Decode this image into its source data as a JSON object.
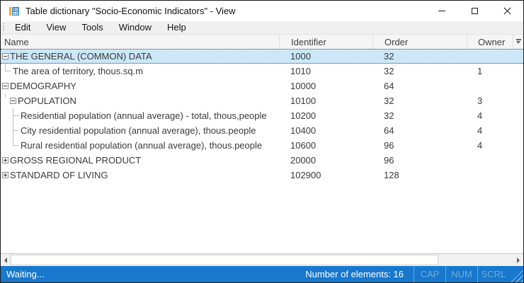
{
  "window": {
    "title": "Table dictionary \"Socio-Economic Indicators\" - View"
  },
  "menubar": {
    "items": [
      {
        "label": "Edit"
      },
      {
        "label": "View"
      },
      {
        "label": "Tools"
      },
      {
        "label": "Window"
      },
      {
        "label": "Help"
      }
    ]
  },
  "table": {
    "columns": [
      {
        "label": "Name"
      },
      {
        "label": "Identifier"
      },
      {
        "label": "Order"
      },
      {
        "label": "Owner"
      }
    ],
    "rows": [
      {
        "name": "THE GENERAL (COMMON) DATA",
        "identifier": "1000",
        "order": "32",
        "owner": "",
        "level": 0,
        "node": "minus",
        "connector": "none",
        "selected": true
      },
      {
        "name": "The area of territory, thous.sq.m",
        "identifier": "1010",
        "order": "32",
        "owner": "1",
        "level": 1,
        "node": "leaf",
        "connector": "last",
        "selected": false
      },
      {
        "name": "DEMOGRAPHY",
        "identifier": "10000",
        "order": "64",
        "owner": "",
        "level": 0,
        "node": "minus",
        "connector": "none",
        "selected": false
      },
      {
        "name": "POPULATION",
        "identifier": "10100",
        "order": "32",
        "owner": "3",
        "level": 1,
        "node": "minus",
        "connector": "drop",
        "selected": false
      },
      {
        "name": "Residential population (annual average) - total, thous,people",
        "identifier": "10200",
        "order": "32",
        "owner": "4",
        "level": 2,
        "node": "leaf",
        "connector": "mid",
        "selected": false
      },
      {
        "name": "City residential population (annual average), thous.people",
        "identifier": "10400",
        "order": "64",
        "owner": "4",
        "level": 2,
        "node": "leaf",
        "connector": "mid",
        "selected": false
      },
      {
        "name": "Rural residential population (annual average), thous.people",
        "identifier": "10600",
        "order": "96",
        "owner": "4",
        "level": 2,
        "node": "leaf",
        "connector": "last",
        "selected": false
      },
      {
        "name": "GROSS REGIONAL PRODUCT",
        "identifier": "20000",
        "order": "96",
        "owner": "",
        "level": 0,
        "node": "plus",
        "connector": "none",
        "selected": false
      },
      {
        "name": "STANDARD OF LIVING",
        "identifier": "102900",
        "order": "128",
        "owner": "",
        "level": 0,
        "node": "plus",
        "connector": "none",
        "selected": false
      }
    ]
  },
  "statusbar": {
    "status": "Waiting...",
    "elements_label": "Number of elements: 16",
    "keys": [
      {
        "label": "CAP"
      },
      {
        "label": "NUM"
      },
      {
        "label": "SCRL"
      }
    ]
  },
  "colors": {
    "statusbar_bg": "#1778cd",
    "selection_bg": "#cbe7f8",
    "icon_blue": "#3488c8",
    "icon_orange": "#f2a63b"
  }
}
